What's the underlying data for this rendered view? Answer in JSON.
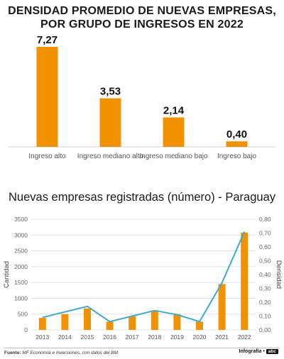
{
  "chart_data": [
    {
      "type": "bar",
      "title": "DENSIDAD PROMEDIO DE NUEVAS EMPRESAS, POR GRUPO DE INGRESOS EN 2022",
      "title_lines": [
        "DENSIDAD PROMEDIO DE NUEVAS EMPRESAS,",
        "POR GRUPO DE INGRESOS EN 2022"
      ],
      "categories": [
        "Ingreso alto",
        "Ingreso mediano alto",
        "Ingreso mediano bajo",
        "Ingreso bajo"
      ],
      "values": [
        7.27,
        3.53,
        2.14,
        0.4
      ],
      "value_labels": [
        "7,27",
        "3,53",
        "2,14",
        "0,40"
      ],
      "bar_color": "#f39200",
      "ylim": [
        0,
        7.27
      ],
      "grid": false
    },
    {
      "type": "bar+line",
      "title": "Nuevas empresas registradas (número) - Paraguay",
      "categories": [
        "2013",
        "2014",
        "2015",
        "2016",
        "2017",
        "2018",
        "2019",
        "2020",
        "2021",
        "2022"
      ],
      "series": [
        {
          "type": "bar",
          "axis": "left",
          "color": "#f39200",
          "values": [
            380,
            500,
            680,
            260,
            430,
            600,
            500,
            260,
            1450,
            3080
          ]
        },
        {
          "type": "line",
          "axis": "right",
          "color": "#40a9d4",
          "values": [
            0.09,
            0.13,
            0.17,
            0.06,
            0.1,
            0.14,
            0.11,
            0.06,
            0.34,
            0.71
          ]
        }
      ],
      "ylabel_left": "Cantidad",
      "ylabel_right": "Densidad",
      "yticks_left": [
        "0",
        "500",
        "1000",
        "1500",
        "2000",
        "2500",
        "3000",
        "3500"
      ],
      "yticks_right": [
        "0,00",
        "0,10",
        "0,20",
        "0,30",
        "0,40",
        "0,50",
        "0,60",
        "0,70",
        "0,80"
      ],
      "ylim_left": [
        0,
        3500
      ],
      "ylim_right": [
        0,
        0.8
      ],
      "grid": true
    }
  ],
  "footer": {
    "source_label": "Fuente:",
    "source_text": "MF Economía e Inversiones, con datos del BM.",
    "credit": "Infografía •",
    "logo": "abc"
  },
  "colors": {
    "accent": "#f39200",
    "line": "#40a9d4",
    "grid": "#d9d9d9"
  }
}
